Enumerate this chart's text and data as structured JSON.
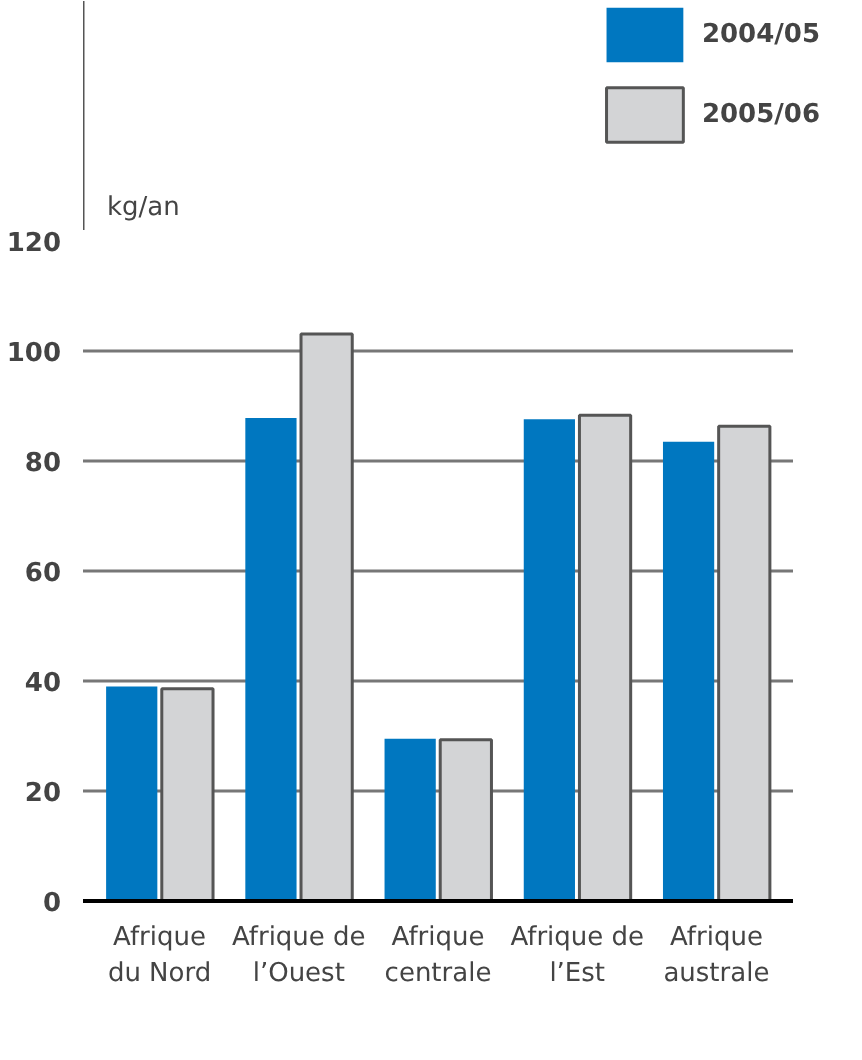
{
  "chart_data": {
    "type": "bar",
    "ylabel": "kg/an",
    "categories": [
      "Afrique\ndu Nord",
      "Afrique de\nl’Ouest",
      "Afrique\ncentrale",
      "Afrique de\nl’Est",
      "Afrique\naustrale"
    ],
    "series": [
      {
        "name": "2004/05",
        "color": "#0077c0",
        "values": [
          39.0,
          87.8,
          29.5,
          87.6,
          83.5
        ]
      },
      {
        "name": "2005/06",
        "color": "#d3d4d6",
        "values": [
          38.6,
          103.1,
          29.3,
          88.3,
          86.3
        ]
      }
    ],
    "ylim": [
      0,
      120
    ],
    "yticks": [
      0,
      20,
      40,
      60,
      80,
      100,
      120
    ],
    "grid": "y",
    "legend": "top right"
  }
}
